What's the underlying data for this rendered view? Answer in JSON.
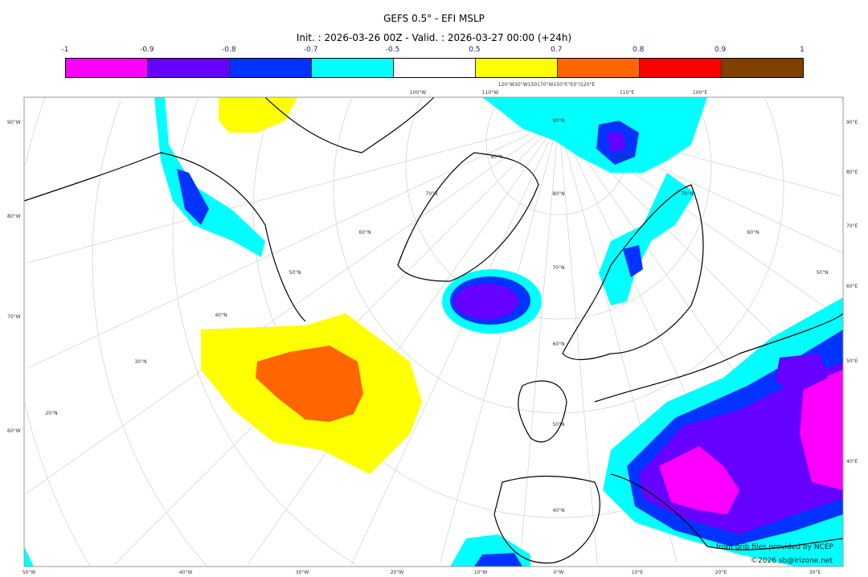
{
  "header": {
    "title": "GEFS 0.5° - EFI MSLP",
    "subtitle": "Init. : 2026-03-26 00Z - Valid. : 2026-03-27 00:00 (+24h)"
  },
  "colorbar": {
    "ticks": [
      "-1",
      "-0.9",
      "-0.8",
      "-0.7",
      "-0.5",
      "0.5",
      "0.7",
      "0.8",
      "0.9",
      "1"
    ],
    "colors": [
      "#ff00ff",
      "#6600ff",
      "#0033ff",
      "#00ffff",
      "#ffffff",
      "#ffff00",
      "#ff6600",
      "#ff0000",
      "#804000"
    ]
  },
  "map": {
    "left_labels": [
      "90°W",
      "80°W",
      "70°W",
      "60°W"
    ],
    "right_labels": [
      "90°E",
      "80°E",
      "70°E",
      "60°E",
      "50°E",
      "40°E"
    ],
    "bottom_labels": [
      "50°W",
      "40°W",
      "30°W",
      "20°W",
      "10°W",
      "0°W",
      "10°E",
      "20°E",
      "30°E"
    ],
    "top_labels": [
      "100°W",
      "110°W",
      "120°W30°W150170°W150°E°E0°I120°E",
      "110°E",
      "100°E"
    ],
    "interior_labels": [
      "90°N",
      "80°N",
      "80°N",
      "70°N",
      "80°N",
      "70°N",
      "60°N",
      "60°N",
      "70°N",
      "50°N",
      "50°N",
      "40°N",
      "60°N",
      "30°N",
      "20°N",
      "50°N",
      "40°N"
    ]
  },
  "credits": {
    "source": "from grib files provided by NCEP",
    "copyright": "©2026 sb@irizone.net"
  }
}
